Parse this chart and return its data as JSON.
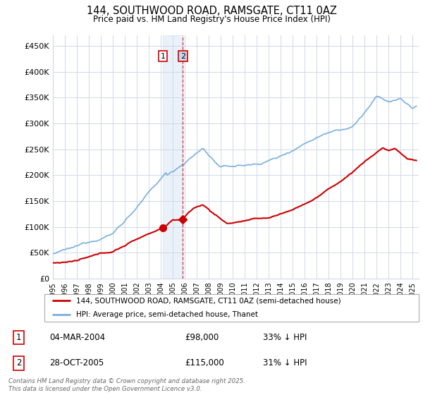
{
  "title": "144, SOUTHWOOD ROAD, RAMSGATE, CT11 0AZ",
  "subtitle": "Price paid vs. HM Land Registry's House Price Index (HPI)",
  "xlim_start": 1995.0,
  "xlim_end": 2025.5,
  "ylim_min": 0,
  "ylim_max": 470000,
  "yticks": [
    0,
    50000,
    100000,
    150000,
    200000,
    250000,
    300000,
    350000,
    400000,
    450000
  ],
  "ytick_labels": [
    "£0",
    "£50K",
    "£100K",
    "£150K",
    "£200K",
    "£250K",
    "£300K",
    "£350K",
    "£400K",
    "£450K"
  ],
  "xticks": [
    1995,
    1996,
    1997,
    1998,
    1999,
    2000,
    2001,
    2002,
    2003,
    2004,
    2005,
    2006,
    2007,
    2008,
    2009,
    2010,
    2011,
    2012,
    2013,
    2014,
    2015,
    2016,
    2017,
    2018,
    2019,
    2020,
    2021,
    2022,
    2023,
    2024,
    2025
  ],
  "sale1_x": 2004.17,
  "sale1_y": 98000,
  "sale2_x": 2005.83,
  "sale2_y": 115000,
  "vline1_x": 2004.17,
  "vline2_x": 2005.83,
  "legend_line1": "144, SOUTHWOOD ROAD, RAMSGATE, CT11 0AZ (semi-detached house)",
  "legend_line2": "HPI: Average price, semi-detached house, Thanet",
  "annotation1_num": "1",
  "annotation1_date": "04-MAR-2004",
  "annotation1_price": "£98,000",
  "annotation1_hpi": "33% ↓ HPI",
  "annotation2_num": "2",
  "annotation2_date": "28-OCT-2005",
  "annotation2_price": "£115,000",
  "annotation2_hpi": "31% ↓ HPI",
  "footer": "Contains HM Land Registry data © Crown copyright and database right 2025.\nThis data is licensed under the Open Government Licence v3.0.",
  "red_color": "#cc0000",
  "blue_color": "#7aafdd",
  "bg_color": "#ffffff",
  "grid_color": "#d0d8e8",
  "vline_color": "#cc0000",
  "shade_color": "#c8d8ee"
}
